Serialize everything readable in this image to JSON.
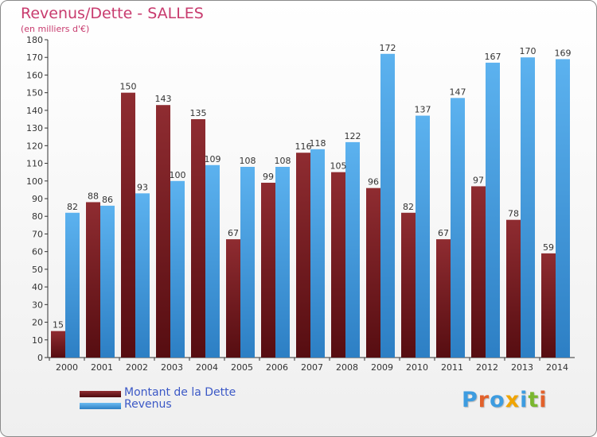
{
  "chart": {
    "title": "Revenus/Dette - SALLES",
    "subtitle": "(en milliers d'€)"
  },
  "colors": {
    "title": "#c83b6e",
    "dette": "#7b2226",
    "revenus": "#4aa3e8",
    "legend_text": "#3b58c6"
  },
  "logo": {
    "letters": [
      "P",
      "r",
      "o",
      "x",
      "i",
      "t",
      "i"
    ],
    "colors": [
      "#3d9ce0",
      "#e2612b",
      "#3d9ce0",
      "#f0a400",
      "#3d9ce0",
      "#7ab72f",
      "#e2612b"
    ]
  },
  "chart_data": {
    "type": "bar",
    "title": "Revenus/Dette - SALLES",
    "subtitle": "(en milliers d'€)",
    "categories": [
      "2000",
      "2001",
      "2002",
      "2003",
      "2004",
      "2005",
      "2006",
      "2007",
      "2008",
      "2009",
      "2010",
      "2011",
      "2012",
      "2013",
      "2014"
    ],
    "series": [
      {
        "name": "Montant de la Dette",
        "color": "#7b2226",
        "values": [
          15,
          88,
          150,
          143,
          135,
          67,
          99,
          116,
          105,
          96,
          82,
          67,
          97,
          78,
          59
        ]
      },
      {
        "name": "Revenus",
        "color": "#4aa3e8",
        "values": [
          82,
          86,
          93,
          100,
          109,
          108,
          108,
          118,
          122,
          172,
          137,
          147,
          167,
          170,
          169
        ]
      }
    ],
    "ylim": [
      0,
      180
    ],
    "ytick_step": 10,
    "grid": false,
    "legend_position": "bottom-left"
  }
}
